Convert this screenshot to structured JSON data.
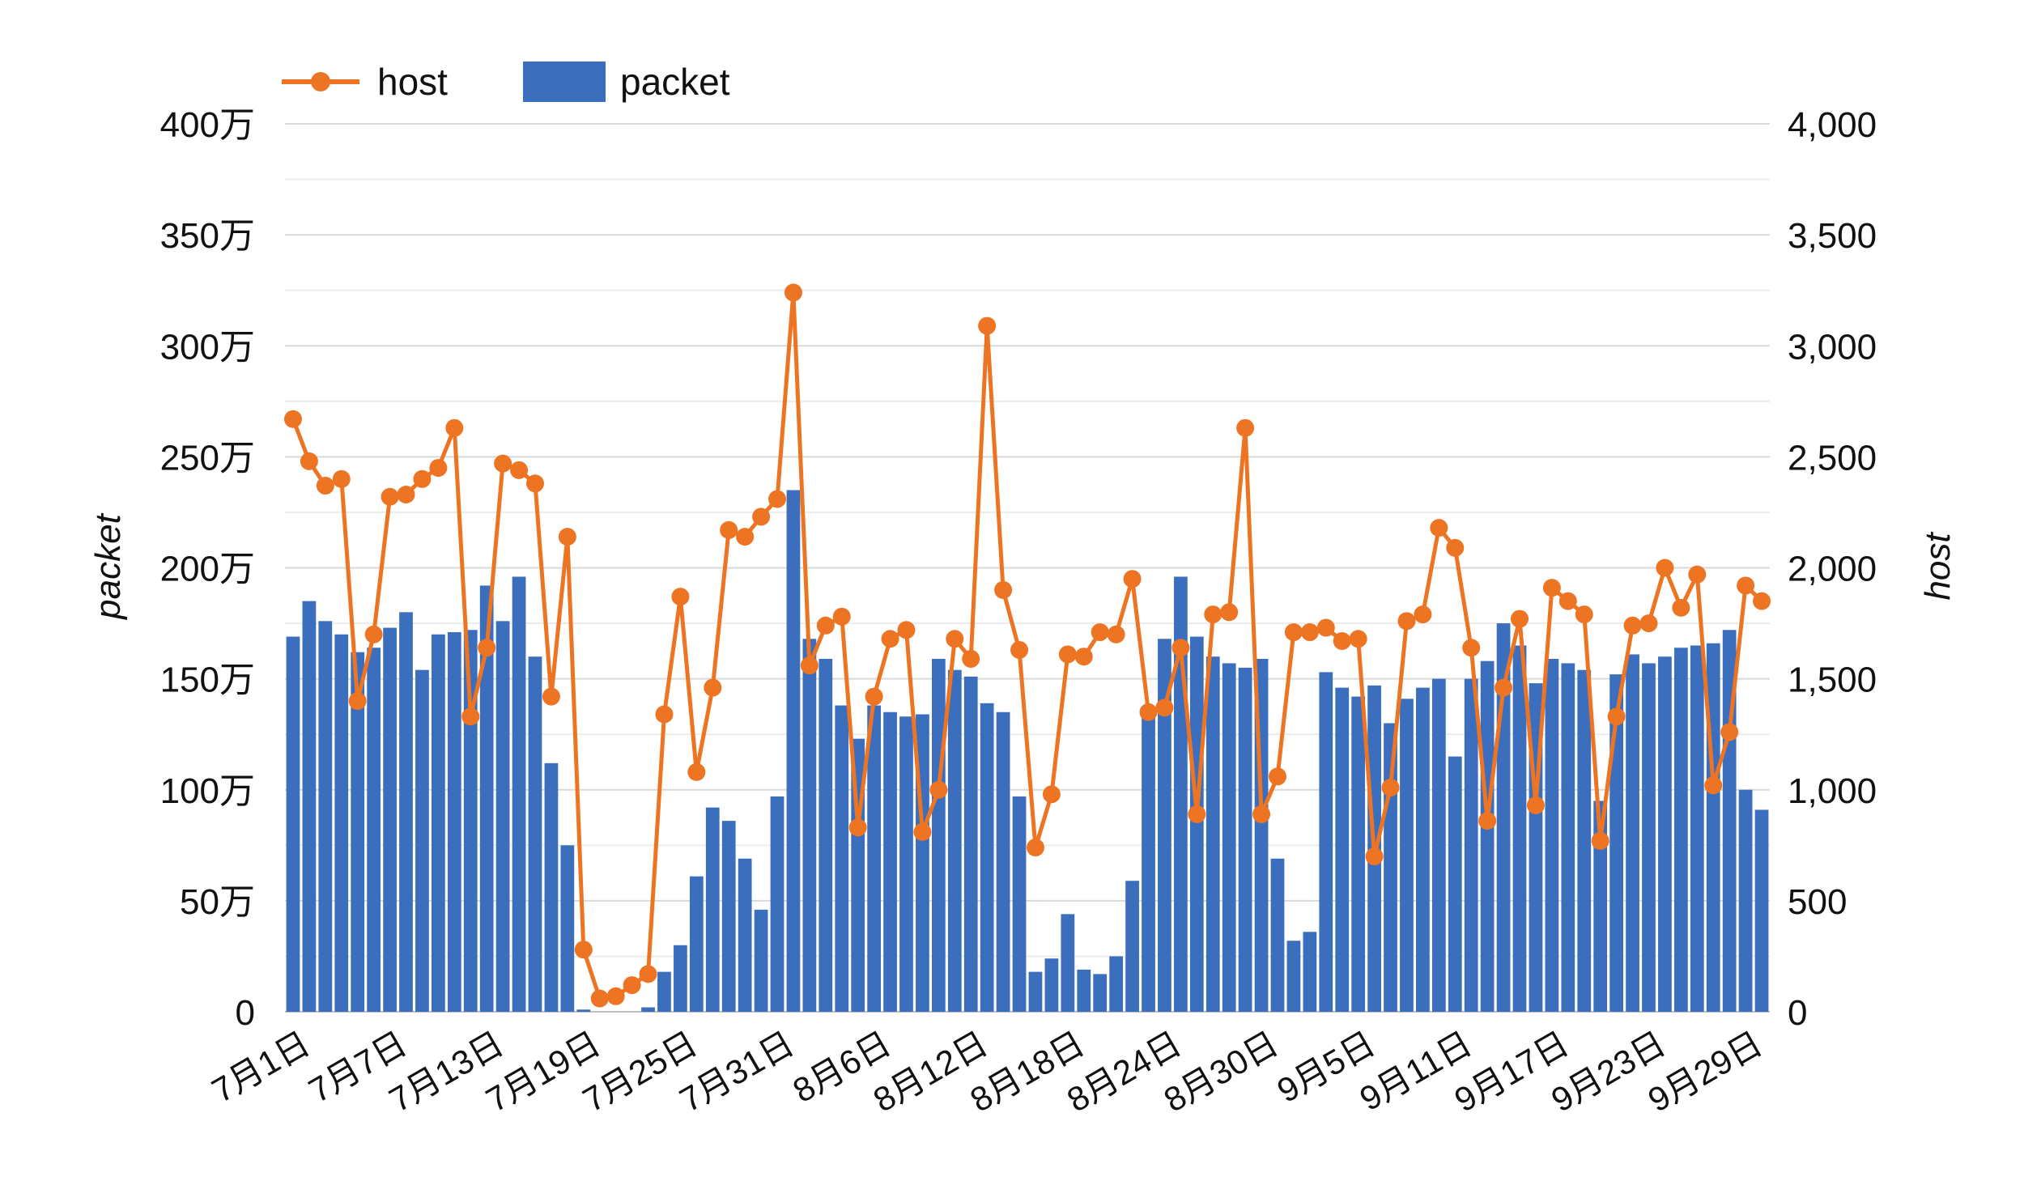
{
  "chart_data": {
    "type": "bar+line",
    "legend": [
      {
        "name": "host",
        "kind": "line-marker",
        "color": "#ED7423"
      },
      {
        "name": "packet",
        "kind": "bar",
        "color": "#3B6FBE"
      }
    ],
    "y_left": {
      "label": "packet",
      "min": 0,
      "max": 4000000,
      "ticks": [
        {
          "value": 0,
          "label": "0"
        },
        {
          "value": 500000,
          "label": "50万"
        },
        {
          "value": 1000000,
          "label": "100万"
        },
        {
          "value": 1500000,
          "label": "150万"
        },
        {
          "value": 2000000,
          "label": "200万"
        },
        {
          "value": 2500000,
          "label": "250万"
        },
        {
          "value": 3000000,
          "label": "300万"
        },
        {
          "value": 3500000,
          "label": "350万"
        },
        {
          "value": 4000000,
          "label": "400万"
        }
      ]
    },
    "y_right": {
      "label": "host",
      "min": 0,
      "max": 4000,
      "ticks": [
        {
          "value": 0,
          "label": "0"
        },
        {
          "value": 500,
          "label": "500"
        },
        {
          "value": 1000,
          "label": "1,000"
        },
        {
          "value": 1500,
          "label": "1,500"
        },
        {
          "value": 2000,
          "label": "2,000"
        },
        {
          "value": 2500,
          "label": "2,500"
        },
        {
          "value": 3000,
          "label": "3,000"
        },
        {
          "value": 3500,
          "label": "3,500"
        },
        {
          "value": 4000,
          "label": "4,000"
        }
      ]
    },
    "grid": true,
    "x_tick_labels": [
      {
        "index": 0,
        "label": "7月1日"
      },
      {
        "index": 6,
        "label": "7月7日"
      },
      {
        "index": 12,
        "label": "7月13日"
      },
      {
        "index": 18,
        "label": "7月19日"
      },
      {
        "index": 24,
        "label": "7月25日"
      },
      {
        "index": 30,
        "label": "7月31日"
      },
      {
        "index": 36,
        "label": "8月6日"
      },
      {
        "index": 42,
        "label": "8月12日"
      },
      {
        "index": 48,
        "label": "8月18日"
      },
      {
        "index": 54,
        "label": "8月24日"
      },
      {
        "index": 60,
        "label": "8月30日"
      },
      {
        "index": 66,
        "label": "9月5日"
      },
      {
        "index": 72,
        "label": "9月11日"
      },
      {
        "index": 78,
        "label": "9月17日"
      },
      {
        "index": 84,
        "label": "9月23日"
      },
      {
        "index": 90,
        "label": "9月29日"
      }
    ],
    "x": [
      "7/1",
      "7/2",
      "7/3",
      "7/4",
      "7/5",
      "7/6",
      "7/7",
      "7/8",
      "7/9",
      "7/10",
      "7/11",
      "7/12",
      "7/13",
      "7/14",
      "7/15",
      "7/16",
      "7/17",
      "7/18",
      "7/19",
      "7/20",
      "7/21",
      "7/22",
      "7/23",
      "7/24",
      "7/25",
      "7/26",
      "7/27",
      "7/28",
      "7/29",
      "7/30",
      "7/31",
      "8/1",
      "8/2",
      "8/3",
      "8/4",
      "8/5",
      "8/6",
      "8/7",
      "8/8",
      "8/9",
      "8/10",
      "8/11",
      "8/12",
      "8/13",
      "8/14",
      "8/15",
      "8/16",
      "8/17",
      "8/18",
      "8/19",
      "8/20",
      "8/21",
      "8/22",
      "8/23",
      "8/24",
      "8/25",
      "8/26",
      "8/27",
      "8/28",
      "8/29",
      "8/30",
      "8/31",
      "9/1",
      "9/2",
      "9/3",
      "9/4",
      "9/5",
      "9/6",
      "9/7",
      "9/8",
      "9/9",
      "9/10",
      "9/11",
      "9/12",
      "9/13",
      "9/14",
      "9/15",
      "9/16",
      "9/17",
      "9/18",
      "9/19",
      "9/20",
      "9/21",
      "9/22",
      "9/23",
      "9/24",
      "9/25",
      "9/26",
      "9/27",
      "9/28",
      "9/29",
      "9/30"
    ],
    "series": [
      {
        "name": "packet",
        "type": "bar",
        "axis": "left",
        "values": [
          1690000,
          1850000,
          1760000,
          1700000,
          1620000,
          1640000,
          1730000,
          1800000,
          1540000,
          1700000,
          1710000,
          1720000,
          1920000,
          1760000,
          1960000,
          1600000,
          1120000,
          750000,
          10000,
          0,
          0,
          0,
          20000,
          180000,
          300000,
          610000,
          920000,
          860000,
          690000,
          460000,
          970000,
          2350000,
          1680000,
          1590000,
          1380000,
          1230000,
          1380000,
          1350000,
          1330000,
          1340000,
          1590000,
          1540000,
          1510000,
          1390000,
          1350000,
          970000,
          180000,
          240000,
          440000,
          190000,
          170000,
          250000,
          590000,
          1340000,
          1680000,
          1960000,
          1690000,
          1600000,
          1570000,
          1550000,
          1590000,
          690000,
          320000,
          360000,
          1530000,
          1460000,
          1420000,
          1470000,
          1300000,
          1410000,
          1460000,
          1500000,
          1150000,
          1500000,
          1580000,
          1750000,
          1650000,
          1480000,
          1590000,
          1570000,
          1540000,
          950000,
          1520000,
          1610000,
          1570000,
          1600000,
          1640000,
          1650000,
          1660000,
          1720000,
          1000000,
          910000
        ]
      },
      {
        "name": "host",
        "type": "line",
        "axis": "right",
        "values": [
          2670,
          2480,
          2370,
          2400,
          1400,
          1700,
          2320,
          2330,
          2400,
          2450,
          2630,
          1330,
          1640,
          2470,
          2440,
          2380,
          1420,
          2140,
          280,
          60,
          70,
          120,
          170,
          1340,
          1870,
          1080,
          1460,
          2170,
          2140,
          2230,
          2310,
          3240,
          1560,
          1740,
          1780,
          830,
          1420,
          1680,
          1720,
          810,
          1000,
          1680,
          1590,
          3090,
          1900,
          1630,
          740,
          980,
          1610,
          1600,
          1710,
          1700,
          1950,
          1350,
          1370,
          1640,
          890,
          1790,
          1800,
          2630,
          890,
          1060,
          1710,
          1710,
          1730,
          1670,
          1680,
          700,
          1010,
          1760,
          1790,
          2180,
          2090,
          1640,
          860,
          1460,
          1770,
          930,
          1910,
          1850,
          1790,
          770,
          1330,
          1740,
          1750,
          2000,
          1820,
          1970,
          1020,
          1260,
          1920,
          1850
        ]
      }
    ]
  }
}
